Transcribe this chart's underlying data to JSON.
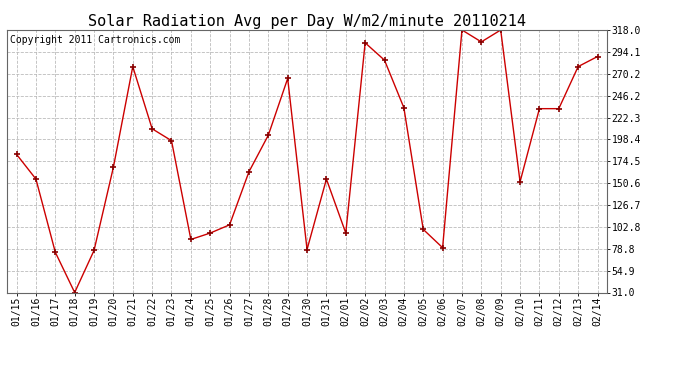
{
  "title": "Solar Radiation Avg per Day W/m2/minute 20110214",
  "copyright": "Copyright 2011 Cartronics.com",
  "dates": [
    "01/15",
    "01/16",
    "01/17",
    "01/18",
    "01/19",
    "01/20",
    "01/21",
    "01/22",
    "01/23",
    "01/24",
    "01/25",
    "01/26",
    "01/27",
    "01/28",
    "01/29",
    "01/30",
    "01/31",
    "02/01",
    "02/02",
    "02/03",
    "02/04",
    "02/05",
    "02/06",
    "02/07",
    "02/08",
    "02/09",
    "02/10",
    "02/11",
    "02/12",
    "02/13",
    "02/14"
  ],
  "values": [
    182.0,
    155.0,
    75.0,
    31.0,
    77.0,
    168.0,
    278.0,
    210.0,
    197.0,
    89.0,
    96.0,
    105.0,
    163.0,
    203.0,
    265.0,
    78.0,
    155.0,
    96.0,
    304.0,
    285.0,
    233.0,
    100.0,
    80.0,
    318.0,
    305.0,
    318.0,
    152.0,
    232.0,
    232.0,
    278.0,
    289.0
  ],
  "line_color": "#cc0000",
  "marker": "+",
  "marker_color": "#880000",
  "background_color": "#ffffff",
  "grid_color": "#bbbbbb",
  "ylim": [
    31.0,
    318.0
  ],
  "yticks": [
    31.0,
    54.9,
    78.8,
    102.8,
    126.7,
    150.6,
    174.5,
    198.4,
    222.3,
    246.2,
    270.2,
    294.1,
    318.0
  ],
  "title_fontsize": 11,
  "copyright_fontsize": 7,
  "tick_fontsize": 7
}
